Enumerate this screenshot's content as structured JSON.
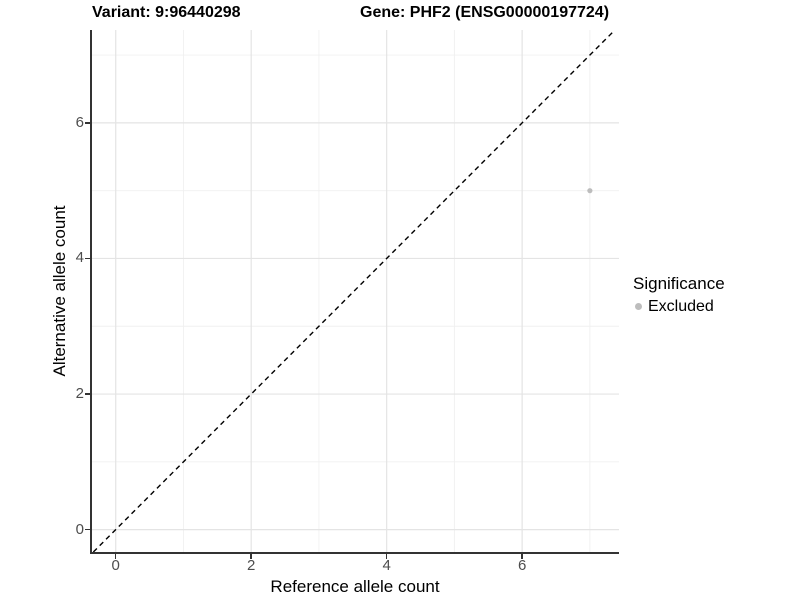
{
  "page_title": {
    "variant": "Variant: 9:96440298",
    "gene": "Gene: PHF2 (ENSG00000197724)"
  },
  "chart_data": {
    "type": "scatter",
    "title": "Variant: 9:96440298 / Gene: PHF2 (ENSG00000197724)",
    "xlabel": "Reference allele count",
    "ylabel": "Alternative allele count",
    "xlim": [
      -0.35,
      7.43
    ],
    "ylim": [
      -0.33,
      7.37
    ],
    "x_ticks": [
      0,
      2,
      4,
      6
    ],
    "y_ticks": [
      0,
      2,
      4,
      6
    ],
    "x_minor_ticks": [
      1,
      3,
      5,
      7
    ],
    "y_minor_ticks": [
      1,
      3,
      5,
      7
    ],
    "grid": true,
    "reference_line": {
      "kind": "identity",
      "slope": 1,
      "intercept": 0,
      "style": "dashed",
      "color": "#000000"
    },
    "series": [
      {
        "name": "Excluded",
        "color": "#bdbdbd",
        "points": [
          [
            7,
            5
          ]
        ]
      }
    ],
    "legend": {
      "title": "Significance",
      "position": "right",
      "entries": [
        {
          "label": "Excluded",
          "color": "#bdbdbd",
          "marker": "circle"
        }
      ]
    }
  },
  "colors": {
    "panel_background": "#ffffff",
    "grid_major": "#e4e4e4",
    "grid_minor": "#f0f0f0",
    "axis_line": "#333333",
    "tick_label": "#4d4d4d",
    "title_text": "#000000"
  }
}
